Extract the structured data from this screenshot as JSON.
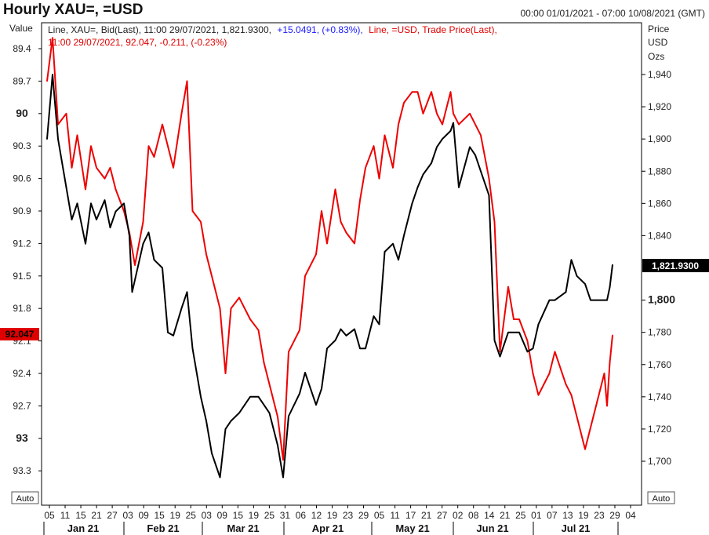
{
  "header": {
    "title": "Hourly XAU=, =USD",
    "range": "00:00 01/01/2021 - 07:00 10/08/2021 (GMT)"
  },
  "legend": {
    "line1_black": "Line, XAU=, Bid(Last), 11:00 29/07/2021, 1,821.9300,",
    "line1_blue": "+15.0491, (+0.83%),",
    "line1_red": "Line, =USD, Trade Price(Last),",
    "line2_red": "11:00 29/07/2021, 92.047, -0.211, (-0.23%)"
  },
  "left_axis": {
    "title": "Value",
    "ticks": [
      "89.4",
      "89.7",
      "90",
      "90.3",
      "90.6",
      "90.9",
      "91.2",
      "91.5",
      "91.8",
      "92.1",
      "92.4",
      "92.7",
      "93",
      "93.3"
    ],
    "auto_label": "Auto",
    "current_value": "92.047"
  },
  "right_axis": {
    "title_lines": [
      "Price",
      "USD",
      "Ozs"
    ],
    "ticks": [
      "1,940",
      "1,920",
      "1,900",
      "1,880",
      "1,860",
      "1,840",
      "1,800",
      "1,780",
      "1,760",
      "1,740",
      "1,720",
      "1,700"
    ],
    "auto_label": "Auto",
    "current_value": "1,821.9300"
  },
  "x_axis": {
    "day_labels": [
      "05",
      "11",
      "15",
      "21",
      "27",
      "03",
      "09",
      "15",
      "19",
      "25",
      "03",
      "09",
      "15",
      "19",
      "25",
      "31",
      "06",
      "12",
      "19",
      "23",
      "29",
      "05",
      "11",
      "17",
      "21",
      "27",
      "02",
      "08",
      "14",
      "21",
      "25",
      "01",
      "07",
      "13",
      "19",
      "23",
      "29",
      "04"
    ],
    "month_labels": [
      "Jan 21",
      "Feb 21",
      "Mar 21",
      "Apr 21",
      "May 21",
      "Jun 21",
      "Jul 21"
    ]
  },
  "colors": {
    "xau": "#000000",
    "usd": "#ee0000",
    "blue": "#1a1aff",
    "red": "#e00000",
    "badge_black": "#000000",
    "badge_red": "#e00000"
  },
  "chart_data": {
    "type": "line",
    "title": "Hourly XAU=, =USD",
    "x_start": "2021-01-01",
    "x_end": "2021-07-29",
    "series": [
      {
        "name": "XAU=, Bid(Last)",
        "axis": "right",
        "ylim": [
          1690,
          1950
        ],
        "points": [
          [
            "2021-01-04",
            1900
          ],
          [
            "2021-01-06",
            1940
          ],
          [
            "2021-01-08",
            1900
          ],
          [
            "2021-01-11",
            1870
          ],
          [
            "2021-01-13",
            1850
          ],
          [
            "2021-01-15",
            1860
          ],
          [
            "2021-01-18",
            1835
          ],
          [
            "2021-01-20",
            1860
          ],
          [
            "2021-01-22",
            1850
          ],
          [
            "2021-01-25",
            1862
          ],
          [
            "2021-01-27",
            1845
          ],
          [
            "2021-01-29",
            1855
          ],
          [
            "2021-02-01",
            1860
          ],
          [
            "2021-02-03",
            1840
          ],
          [
            "2021-02-04",
            1805
          ],
          [
            "2021-02-08",
            1835
          ],
          [
            "2021-02-10",
            1842
          ],
          [
            "2021-02-12",
            1825
          ],
          [
            "2021-02-15",
            1820
          ],
          [
            "2021-02-17",
            1780
          ],
          [
            "2021-02-19",
            1778
          ],
          [
            "2021-02-22",
            1795
          ],
          [
            "2021-02-24",
            1805
          ],
          [
            "2021-02-26",
            1770
          ],
          [
            "2021-03-01",
            1740
          ],
          [
            "2021-03-03",
            1725
          ],
          [
            "2021-03-05",
            1705
          ],
          [
            "2021-03-08",
            1690
          ],
          [
            "2021-03-10",
            1720
          ],
          [
            "2021-03-12",
            1725
          ],
          [
            "2021-03-15",
            1730
          ],
          [
            "2021-03-17",
            1735
          ],
          [
            "2021-03-19",
            1740
          ],
          [
            "2021-03-22",
            1740
          ],
          [
            "2021-03-24",
            1735
          ],
          [
            "2021-03-26",
            1730
          ],
          [
            "2021-03-29",
            1710
          ],
          [
            "2021-03-31",
            1690
          ],
          [
            "2021-04-02",
            1728
          ],
          [
            "2021-04-06",
            1742
          ],
          [
            "2021-04-08",
            1755
          ],
          [
            "2021-04-12",
            1735
          ],
          [
            "2021-04-14",
            1745
          ],
          [
            "2021-04-16",
            1770
          ],
          [
            "2021-04-19",
            1775
          ],
          [
            "2021-04-21",
            1782
          ],
          [
            "2021-04-23",
            1778
          ],
          [
            "2021-04-26",
            1782
          ],
          [
            "2021-04-28",
            1770
          ],
          [
            "2021-04-30",
            1770
          ],
          [
            "2021-05-03",
            1790
          ],
          [
            "2021-05-05",
            1785
          ],
          [
            "2021-05-07",
            1830
          ],
          [
            "2021-05-10",
            1835
          ],
          [
            "2021-05-12",
            1825
          ],
          [
            "2021-05-14",
            1840
          ],
          [
            "2021-05-17",
            1860
          ],
          [
            "2021-05-19",
            1870
          ],
          [
            "2021-05-21",
            1878
          ],
          [
            "2021-05-24",
            1885
          ],
          [
            "2021-05-26",
            1895
          ],
          [
            "2021-05-28",
            1900
          ],
          [
            "2021-05-31",
            1905
          ],
          [
            "2021-06-01",
            1910
          ],
          [
            "2021-06-03",
            1870
          ],
          [
            "2021-06-07",
            1895
          ],
          [
            "2021-06-09",
            1890
          ],
          [
            "2021-06-11",
            1880
          ],
          [
            "2021-06-14",
            1865
          ],
          [
            "2021-06-16",
            1775
          ],
          [
            "2021-06-18",
            1765
          ],
          [
            "2021-06-21",
            1780
          ],
          [
            "2021-06-23",
            1780
          ],
          [
            "2021-06-25",
            1780
          ],
          [
            "2021-06-28",
            1768
          ],
          [
            "2021-06-30",
            1770
          ],
          [
            "2021-07-02",
            1785
          ],
          [
            "2021-07-06",
            1800
          ],
          [
            "2021-07-08",
            1800
          ],
          [
            "2021-07-12",
            1805
          ],
          [
            "2021-07-14",
            1825
          ],
          [
            "2021-07-16",
            1815
          ],
          [
            "2021-07-19",
            1810
          ],
          [
            "2021-07-21",
            1800
          ],
          [
            "2021-07-23",
            1800
          ],
          [
            "2021-07-26",
            1800
          ],
          [
            "2021-07-27",
            1800
          ],
          [
            "2021-07-28",
            1808
          ],
          [
            "2021-07-29",
            1821.93
          ]
        ]
      },
      {
        "name": "=USD, Trade Price(Last)",
        "axis": "left",
        "ylim": [
          89.3,
          93.5
        ],
        "points": [
          [
            "2021-01-04",
            89.7
          ],
          [
            "2021-01-06",
            89.3
          ],
          [
            "2021-01-08",
            90.1
          ],
          [
            "2021-01-11",
            90.0
          ],
          [
            "2021-01-13",
            90.5
          ],
          [
            "2021-01-15",
            90.2
          ],
          [
            "2021-01-18",
            90.7
          ],
          [
            "2021-01-20",
            90.3
          ],
          [
            "2021-01-22",
            90.5
          ],
          [
            "2021-01-25",
            90.6
          ],
          [
            "2021-01-27",
            90.5
          ],
          [
            "2021-01-29",
            90.7
          ],
          [
            "2021-02-01",
            90.9
          ],
          [
            "2021-02-03",
            91.1
          ],
          [
            "2021-02-05",
            91.4
          ],
          [
            "2021-02-08",
            91.0
          ],
          [
            "2021-02-10",
            90.3
          ],
          [
            "2021-02-12",
            90.4
          ],
          [
            "2021-02-15",
            90.1
          ],
          [
            "2021-02-17",
            90.3
          ],
          [
            "2021-02-19",
            90.5
          ],
          [
            "2021-02-22",
            90.0
          ],
          [
            "2021-02-24",
            89.7
          ],
          [
            "2021-02-26",
            90.9
          ],
          [
            "2021-03-01",
            91.0
          ],
          [
            "2021-03-03",
            91.3
          ],
          [
            "2021-03-05",
            91.5
          ],
          [
            "2021-03-08",
            91.8
          ],
          [
            "2021-03-10",
            92.4
          ],
          [
            "2021-03-12",
            91.8
          ],
          [
            "2021-03-15",
            91.7
          ],
          [
            "2021-03-17",
            91.8
          ],
          [
            "2021-03-19",
            91.9
          ],
          [
            "2021-03-22",
            92.0
          ],
          [
            "2021-03-24",
            92.3
          ],
          [
            "2021-03-26",
            92.5
          ],
          [
            "2021-03-29",
            92.8
          ],
          [
            "2021-03-31",
            93.2
          ],
          [
            "2021-04-02",
            92.2
          ],
          [
            "2021-04-06",
            92.0
          ],
          [
            "2021-04-08",
            91.5
          ],
          [
            "2021-04-12",
            91.3
          ],
          [
            "2021-04-14",
            90.9
          ],
          [
            "2021-04-16",
            91.2
          ],
          [
            "2021-04-19",
            90.7
          ],
          [
            "2021-04-21",
            91.0
          ],
          [
            "2021-04-23",
            91.1
          ],
          [
            "2021-04-26",
            91.2
          ],
          [
            "2021-04-28",
            90.8
          ],
          [
            "2021-04-30",
            90.5
          ],
          [
            "2021-05-03",
            90.3
          ],
          [
            "2021-05-05",
            90.6
          ],
          [
            "2021-05-07",
            90.2
          ],
          [
            "2021-05-10",
            90.5
          ],
          [
            "2021-05-12",
            90.1
          ],
          [
            "2021-05-14",
            89.9
          ],
          [
            "2021-05-17",
            89.8
          ],
          [
            "2021-05-19",
            89.8
          ],
          [
            "2021-05-21",
            90.0
          ],
          [
            "2021-05-24",
            89.8
          ],
          [
            "2021-05-26",
            90.0
          ],
          [
            "2021-05-28",
            90.1
          ],
          [
            "2021-05-31",
            89.8
          ],
          [
            "2021-06-01",
            90.0
          ],
          [
            "2021-06-03",
            90.1
          ],
          [
            "2021-06-07",
            90.0
          ],
          [
            "2021-06-09",
            90.1
          ],
          [
            "2021-06-11",
            90.2
          ],
          [
            "2021-06-14",
            90.6
          ],
          [
            "2021-06-16",
            91.0
          ],
          [
            "2021-06-18",
            92.2
          ],
          [
            "2021-06-21",
            91.6
          ],
          [
            "2021-06-23",
            91.9
          ],
          [
            "2021-06-25",
            91.9
          ],
          [
            "2021-06-28",
            92.1
          ],
          [
            "2021-06-30",
            92.4
          ],
          [
            "2021-07-02",
            92.6
          ],
          [
            "2021-07-06",
            92.4
          ],
          [
            "2021-07-08",
            92.2
          ],
          [
            "2021-07-12",
            92.5
          ],
          [
            "2021-07-14",
            92.6
          ],
          [
            "2021-07-16",
            92.8
          ],
          [
            "2021-07-19",
            93.1
          ],
          [
            "2021-07-21",
            92.9
          ],
          [
            "2021-07-23",
            92.7
          ],
          [
            "2021-07-26",
            92.4
          ],
          [
            "2021-07-27",
            92.7
          ],
          [
            "2021-07-28",
            92.3
          ],
          [
            "2021-07-29",
            92.047
          ]
        ]
      }
    ],
    "grid": false,
    "legend": "top-left"
  }
}
